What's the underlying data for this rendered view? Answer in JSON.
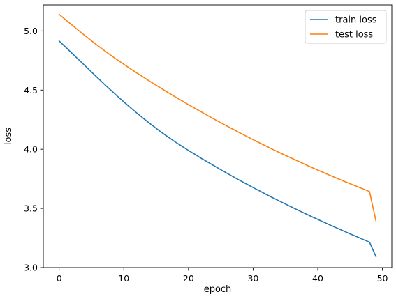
{
  "chart_data": {
    "type": "line",
    "title": "",
    "xlabel": "epoch",
    "ylabel": "loss",
    "xlim": [
      -2.45,
      51.45
    ],
    "ylim": [
      3.0,
      5.22
    ],
    "x_ticks": [
      0,
      10,
      20,
      30,
      40,
      50
    ],
    "x_tick_labels": [
      "0",
      "10",
      "20",
      "30",
      "40",
      "50"
    ],
    "y_ticks": [
      3.0,
      3.5,
      4.0,
      4.5,
      5.0
    ],
    "y_tick_labels": [
      "3.0",
      "3.5",
      "4.0",
      "4.5",
      "5.0"
    ],
    "grid": false,
    "legend_position": "top-right",
    "x": [
      0,
      1,
      2,
      3,
      4,
      5,
      6,
      7,
      8,
      9,
      10,
      11,
      12,
      13,
      14,
      15,
      16,
      17,
      18,
      19,
      20,
      21,
      22,
      23,
      24,
      25,
      26,
      27,
      28,
      29,
      30,
      31,
      32,
      33,
      34,
      35,
      36,
      37,
      38,
      39,
      40,
      41,
      42,
      43,
      44,
      45,
      46,
      47,
      48,
      49
    ],
    "series": [
      {
        "name": "train loss",
        "color": "#1f77b4",
        "values": [
          4.915,
          4.863,
          4.81,
          4.758,
          4.706,
          4.653,
          4.601,
          4.549,
          4.499,
          4.449,
          4.4,
          4.353,
          4.307,
          4.262,
          4.219,
          4.177,
          4.136,
          4.098,
          4.06,
          4.025,
          3.99,
          3.957,
          3.923,
          3.891,
          3.859,
          3.827,
          3.796,
          3.765,
          3.735,
          3.706,
          3.676,
          3.648,
          3.619,
          3.591,
          3.564,
          3.537,
          3.51,
          3.484,
          3.458,
          3.432,
          3.407,
          3.382,
          3.357,
          3.333,
          3.309,
          3.285,
          3.262,
          3.238,
          3.215,
          3.093
        ]
      },
      {
        "name": "test loss",
        "color": "#ff7f0e",
        "values": [
          5.14,
          5.094,
          5.049,
          5.004,
          4.96,
          4.917,
          4.875,
          4.834,
          4.794,
          4.755,
          4.718,
          4.681,
          4.645,
          4.61,
          4.575,
          4.541,
          4.507,
          4.474,
          4.441,
          4.409,
          4.377,
          4.346,
          4.315,
          4.284,
          4.254,
          4.224,
          4.195,
          4.166,
          4.137,
          4.109,
          4.081,
          4.054,
          4.027,
          4.0,
          3.974,
          3.948,
          3.923,
          3.898,
          3.873,
          3.848,
          3.824,
          3.8,
          3.777,
          3.754,
          3.731,
          3.709,
          3.687,
          3.665,
          3.643,
          3.395
        ]
      }
    ]
  }
}
